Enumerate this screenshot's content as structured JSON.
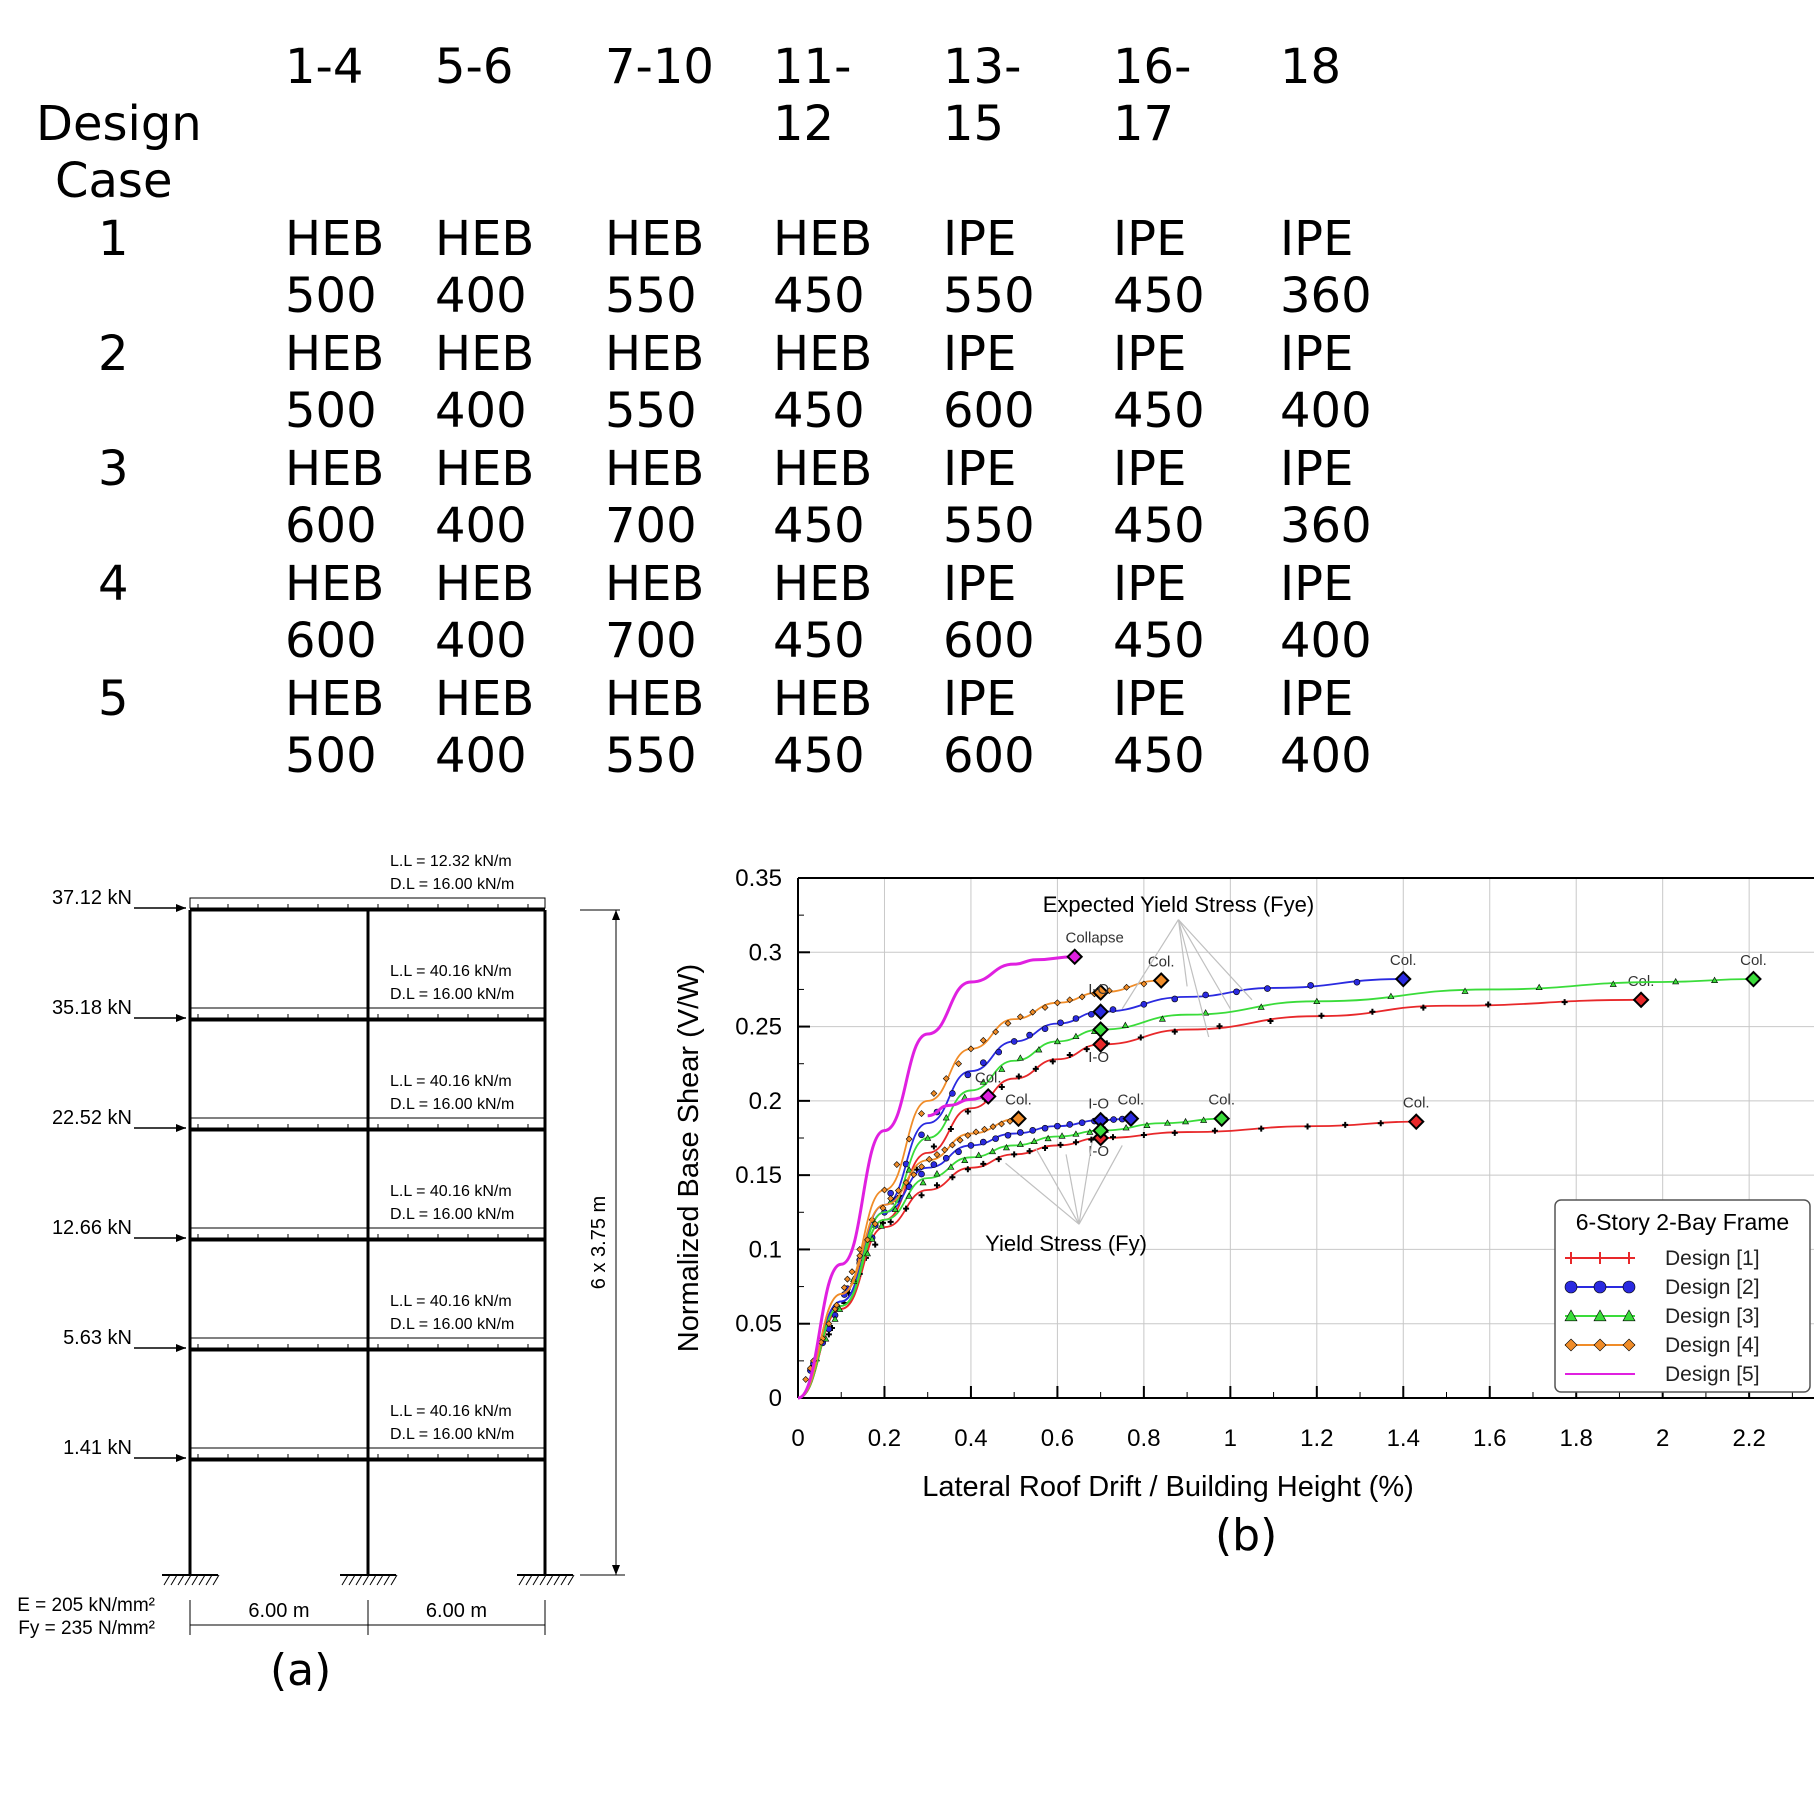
{
  "table": {
    "header_label": "Design Case",
    "column_headers": [
      "1-4",
      "5-6",
      "7-10",
      "11-12",
      "13-15",
      "16-17",
      "18"
    ],
    "rows": [
      {
        "case": "1",
        "cells": [
          "HEB 500",
          "HEB 400",
          "HEB 550",
          "HEB 450",
          "IPE 550",
          "IPE 450",
          "IPE 360"
        ]
      },
      {
        "case": "2",
        "cells": [
          "HEB 500",
          "HEB 400",
          "HEB 550",
          "HEB 450",
          "IPE 600",
          "IPE 450",
          "IPE 400"
        ]
      },
      {
        "case": "3",
        "cells": [
          "HEB 600",
          "HEB 400",
          "HEB 700",
          "HEB 450",
          "IPE 550",
          "IPE 450",
          "IPE 360"
        ]
      },
      {
        "case": "4",
        "cells": [
          "HEB 600",
          "HEB 400",
          "HEB 700",
          "HEB 450",
          "IPE 600",
          "IPE 450",
          "IPE 400"
        ]
      },
      {
        "case": "5",
        "cells": [
          "HEB 500",
          "HEB 400",
          "HEB 550",
          "HEB 450",
          "IPE 600",
          "IPE 450",
          "IPE 400"
        ]
      }
    ]
  },
  "frame": {
    "caption": "(a)",
    "lateral_loads": [
      "37.12 kN",
      "35.18 kN",
      "22.52 kN",
      "12.66 kN",
      "5.63 kN",
      "1.41 kN"
    ],
    "floor_loads": [
      {
        "ll": "L.L = 12.32  kN/m",
        "dl": "D.L = 16.00  kN/m"
      },
      {
        "ll": "L.L = 40.16  kN/m",
        "dl": "D.L = 16.00  kN/m"
      },
      {
        "ll": "L.L = 40.16  kN/m",
        "dl": "D.L = 16.00  kN/m"
      },
      {
        "ll": "L.L = 40.16  kN/m",
        "dl": "D.L = 16.00  kN/m"
      },
      {
        "ll": "L.L = 40.16  kN/m",
        "dl": "D.L = 16.00  kN/m"
      },
      {
        "ll": "L.L = 40.16  kN/m",
        "dl": "D.L = 16.00  kN/m"
      }
    ],
    "height_label": "6 x 3.75 m",
    "bay_labels": [
      "6.00 m",
      "6.00 m"
    ],
    "material": [
      "E = 205 kN/mm²",
      "Fy = 235 N/mm²"
    ]
  },
  "chart_data": {
    "type": "line",
    "caption": "(b)",
    "xlabel": "Lateral Roof Drift / Building Height (%)",
    "ylabel": "Normalized Base Shear (V/W)",
    "xlim": [
      0,
      2.35
    ],
    "ylim": [
      0,
      0.35
    ],
    "xticks": [
      "0",
      "0.2",
      "0.4",
      "0.6",
      "0.8",
      "1",
      "1.2",
      "1.4",
      "1.6",
      "1.8",
      "2",
      "2.2"
    ],
    "yticks": [
      "0",
      "0.05",
      "0.1",
      "0.15",
      "0.2",
      "0.25",
      "0.3",
      "0.35"
    ],
    "grid": true,
    "legend_title": "6-Story 2-Bay Frame",
    "legend_position": "bottom-right",
    "group_labels": {
      "expected": "Expected Yield Stress (Fye)",
      "nominal": "Yield Stress (Fy)"
    },
    "point_labels": {
      "col": "Col.",
      "io": "I-O",
      "collapse": "Collapse"
    },
    "series": [
      {
        "name": "Design [1]",
        "color": "#e8282a",
        "marker": "plus",
        "expected": {
          "x": [
            0,
            0.1,
            0.2,
            0.3,
            0.4,
            0.5,
            0.6,
            0.7,
            0.9,
            1.2,
            1.5,
            1.95
          ],
          "y": [
            0,
            0.06,
            0.12,
            0.165,
            0.195,
            0.215,
            0.228,
            0.238,
            0.248,
            0.257,
            0.264,
            0.268
          ],
          "io": [
            0.7,
            0.238
          ],
          "col": [
            1.95,
            0.268
          ]
        },
        "nominal": {
          "x": [
            0,
            0.1,
            0.2,
            0.3,
            0.4,
            0.5,
            0.6,
            0.7,
            0.9,
            1.2,
            1.43
          ],
          "y": [
            0,
            0.06,
            0.115,
            0.14,
            0.155,
            0.164,
            0.17,
            0.175,
            0.179,
            0.183,
            0.186
          ],
          "io": [
            0.7,
            0.175
          ],
          "col": [
            1.43,
            0.186
          ]
        }
      },
      {
        "name": "Design [2]",
        "color": "#2a2ae0",
        "marker": "circle",
        "expected": {
          "x": [
            0,
            0.1,
            0.2,
            0.3,
            0.4,
            0.5,
            0.6,
            0.7,
            0.9,
            1.1,
            1.4
          ],
          "y": [
            0,
            0.065,
            0.13,
            0.185,
            0.22,
            0.24,
            0.252,
            0.26,
            0.27,
            0.276,
            0.282
          ],
          "io": [
            0.7,
            0.26
          ],
          "col": [
            1.4,
            0.282
          ]
        },
        "nominal": {
          "x": [
            0,
            0.1,
            0.2,
            0.3,
            0.4,
            0.5,
            0.6,
            0.7,
            0.77
          ],
          "y": [
            0,
            0.065,
            0.125,
            0.155,
            0.17,
            0.178,
            0.183,
            0.187,
            0.188
          ],
          "io": [
            0.7,
            0.187
          ],
          "col": [
            0.77,
            0.188
          ]
        }
      },
      {
        "name": "Design [3]",
        "color": "#3adc3a",
        "marker": "triangle",
        "expected": {
          "x": [
            0,
            0.1,
            0.2,
            0.3,
            0.4,
            0.5,
            0.6,
            0.7,
            0.9,
            1.2,
            1.6,
            2.0,
            2.21
          ],
          "y": [
            0,
            0.062,
            0.125,
            0.175,
            0.207,
            0.227,
            0.24,
            0.248,
            0.258,
            0.267,
            0.275,
            0.28,
            0.282
          ],
          "io": [
            0.7,
            0.248
          ],
          "col": [
            2.21,
            0.282
          ]
        },
        "nominal": {
          "x": [
            0,
            0.1,
            0.2,
            0.3,
            0.4,
            0.5,
            0.6,
            0.7,
            0.85,
            0.98
          ],
          "y": [
            0,
            0.062,
            0.12,
            0.148,
            0.162,
            0.17,
            0.176,
            0.18,
            0.185,
            0.188
          ],
          "io": [
            0.7,
            0.18
          ],
          "col": [
            0.98,
            0.188
          ]
        }
      },
      {
        "name": "Design [4]",
        "color": "#f08c28",
        "marker": "diamond",
        "expected": {
          "x": [
            0,
            0.1,
            0.2,
            0.3,
            0.4,
            0.5,
            0.6,
            0.7,
            0.84
          ],
          "y": [
            0,
            0.07,
            0.14,
            0.2,
            0.235,
            0.255,
            0.266,
            0.273,
            0.281
          ],
          "io": [
            0.7,
            0.273
          ],
          "col": [
            0.84,
            0.281
          ]
        },
        "nominal": {
          "x": [
            0,
            0.1,
            0.2,
            0.3,
            0.4,
            0.51
          ],
          "y": [
            0,
            0.07,
            0.13,
            0.16,
            0.178,
            0.188
          ],
          "col": [
            0.51,
            0.188
          ]
        }
      },
      {
        "name": "Design [5]",
        "color": "#e020e0",
        "marker": "none",
        "expected": {
          "x": [
            0,
            0.1,
            0.2,
            0.3,
            0.4,
            0.5,
            0.55,
            0.64
          ],
          "y": [
            0,
            0.09,
            0.18,
            0.245,
            0.28,
            0.292,
            0.295,
            0.297
          ],
          "collapse": [
            0.64,
            0.297
          ]
        },
        "nominal": {
          "x": [
            0.3,
            0.35,
            0.4,
            0.44
          ],
          "y": [
            0.19,
            0.197,
            0.201,
            0.203
          ],
          "col": [
            0.44,
            0.203
          ]
        }
      }
    ]
  }
}
